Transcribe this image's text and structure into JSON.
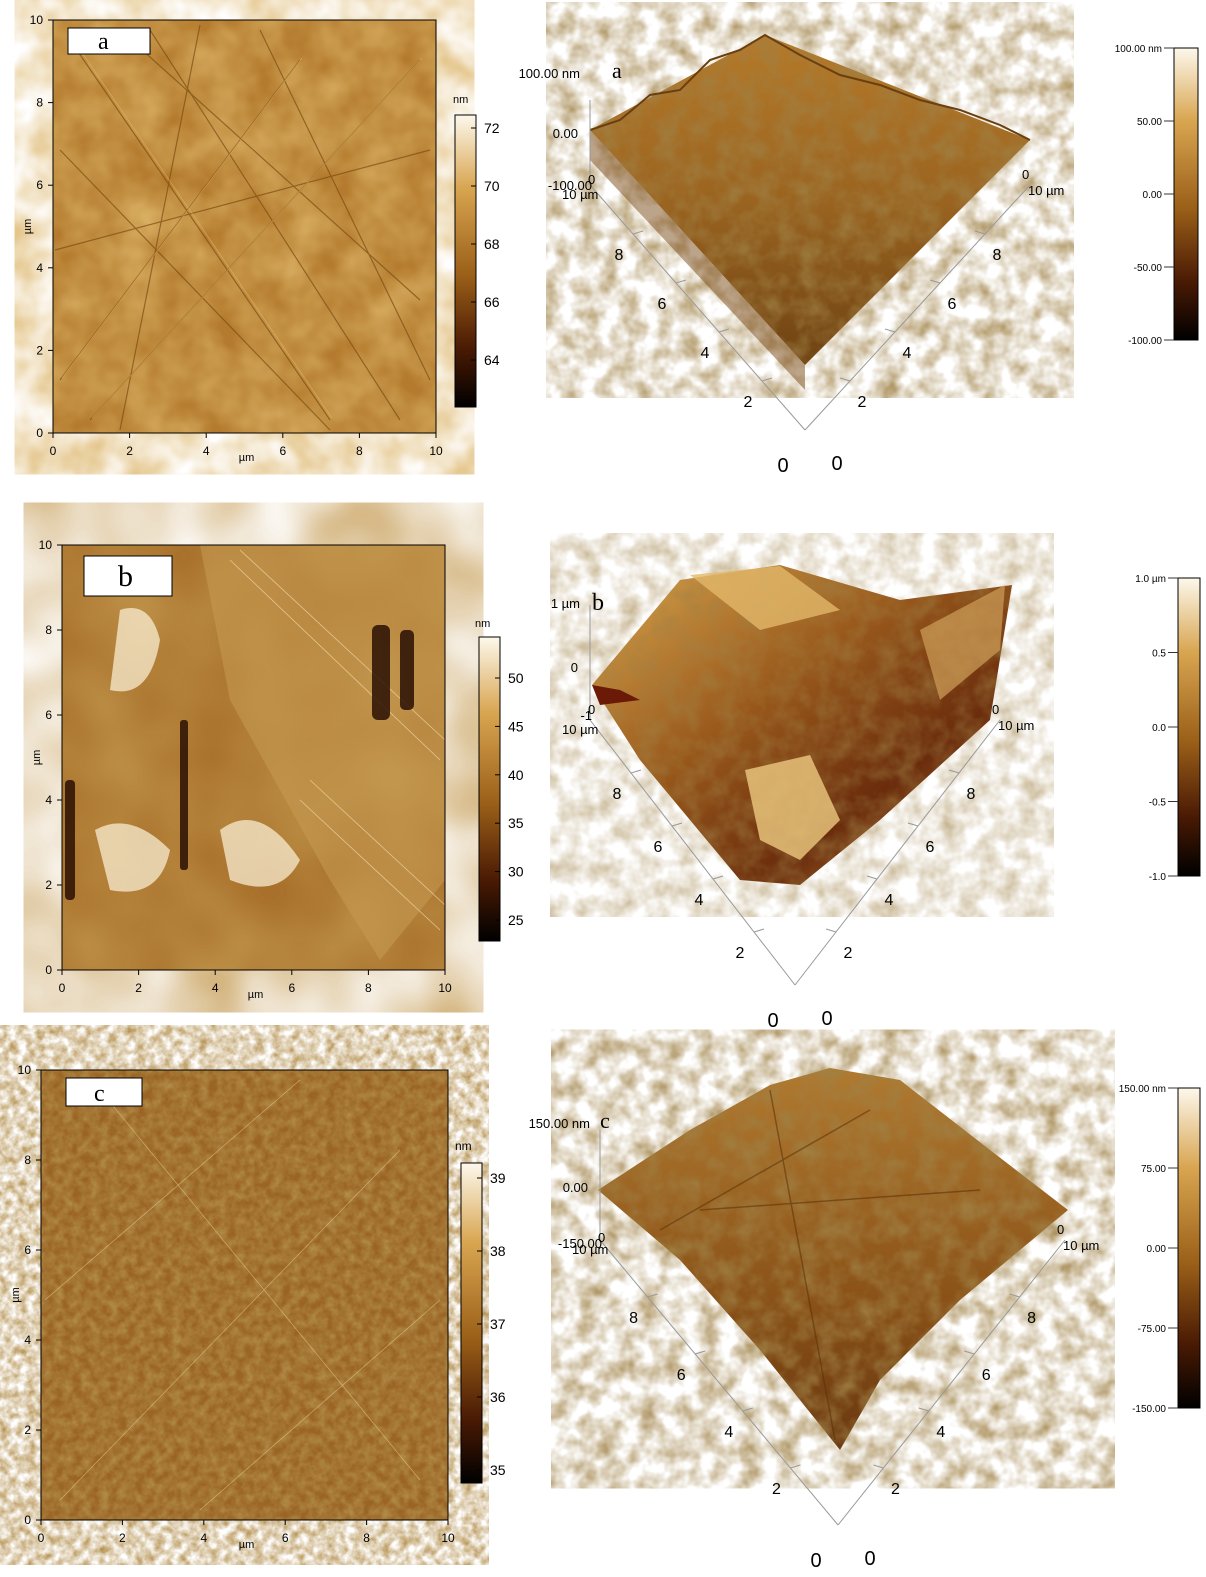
{
  "colors": {
    "dark": "#000000",
    "mid_dark": "#5a2a08",
    "mid": "#a66a1c",
    "light": "#d9a648",
    "pale": "#fbf4e6"
  },
  "panels": [
    {
      "tag": "a",
      "map_ticks": [
        "0",
        "2",
        "4",
        "6",
        "8",
        "10"
      ],
      "map_xlabel": "µm",
      "map_ylabel": "µm",
      "map_bar_unit": "nm",
      "map_bar_ticks": [
        "72",
        "70",
        "68",
        "66",
        "64"
      ],
      "surface_z_top": "100.00 nm",
      "surface_z_mid": "0.00",
      "surface_z_bot": "-100.00",
      "surface_axis_left": [
        "8",
        "6",
        "4",
        "2"
      ],
      "surface_axis_right": [
        "8",
        "6",
        "4",
        "2"
      ],
      "surface_corner_zero": "0",
      "surface_left_end": "10 µm",
      "surface_right_end": "10 µm",
      "surface_bottom_zeros": [
        "0",
        "0"
      ],
      "legend_ticks": [
        "100.00 nm",
        "50.00",
        "0.00",
        "-50.00",
        "-100.00"
      ],
      "style": "scratch"
    },
    {
      "tag": "b",
      "map_ticks": [
        "0",
        "2",
        "4",
        "6",
        "8",
        "10"
      ],
      "map_xlabel": "µm",
      "map_ylabel": "µm",
      "map_bar_unit": "nm",
      "map_bar_ticks": [
        "50",
        "45",
        "40",
        "35",
        "30",
        "25"
      ],
      "surface_z_top": "1 µm",
      "surface_z_mid": "0",
      "surface_z_bot": "-1",
      "surface_axis_left": [
        "8",
        "6",
        "4",
        "2"
      ],
      "surface_axis_right": [
        "8",
        "6",
        "4",
        "2"
      ],
      "surface_corner_zero": "0",
      "surface_left_end": "10 µm",
      "surface_right_end": "10 µm",
      "surface_bottom_zeros": [
        "0",
        "0"
      ],
      "legend_ticks": [
        "1.0 µm",
        "0.5",
        "0.0",
        "-0.5",
        "-1.0"
      ],
      "style": "flake"
    },
    {
      "tag": "c",
      "map_ticks": [
        "0",
        "2",
        "4",
        "6",
        "8",
        "10"
      ],
      "map_xlabel": "µm",
      "map_ylabel": "µm",
      "map_bar_unit": "nm",
      "map_bar_ticks": [
        "39",
        "38",
        "37",
        "36",
        "35"
      ],
      "surface_z_top": "150.00 nm",
      "surface_z_mid": "0.00",
      "surface_z_bot": "-150.00",
      "surface_axis_left": [
        "8",
        "6",
        "4",
        "2"
      ],
      "surface_axis_right": [
        "8",
        "6",
        "4",
        "2"
      ],
      "surface_corner_zero": "0",
      "surface_left_end": "10 µm",
      "surface_right_end": "10 µm",
      "surface_bottom_zeros": [
        "0",
        "0"
      ],
      "legend_ticks": [
        "150.00 nm",
        "75.00",
        "0.00",
        "-75.00",
        "-150.00"
      ],
      "style": "grain"
    }
  ]
}
